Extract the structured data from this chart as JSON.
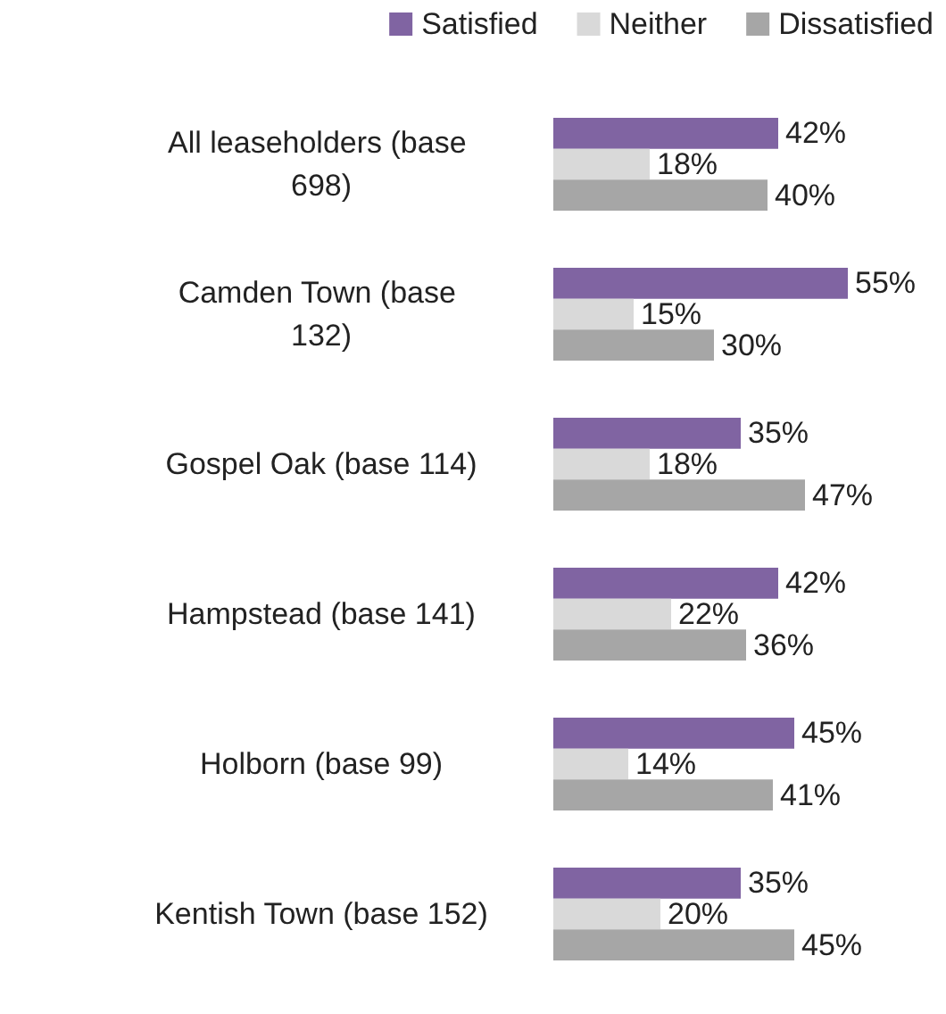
{
  "chart_data": {
    "type": "bar",
    "orientation": "horizontal",
    "categories": [
      "All leaseholders (base 698)",
      "Camden Town (base 132)",
      "Gospel Oak (base 114)",
      "Hampstead (base 141)",
      "Holborn (base 99)",
      "Kentish Town (base 152)"
    ],
    "series": [
      {
        "name": "Satisfied",
        "color": "#8064a2",
        "values": [
          42,
          55,
          35,
          42,
          45,
          35
        ],
        "value_labels": [
          "42%",
          "55%",
          "35%",
          "42%",
          "45%",
          "35%"
        ]
      },
      {
        "name": "Neither",
        "color": "#d9d9d9",
        "values": [
          18,
          15,
          18,
          22,
          14,
          20
        ],
        "value_labels": [
          "18%",
          "15%",
          "18%",
          "22%",
          "14%",
          "20%"
        ]
      },
      {
        "name": "Dissatisfied",
        "color": "#a6a6a6",
        "values": [
          40,
          30,
          47,
          36,
          41,
          45
        ],
        "value_labels": [
          "40%",
          "30%",
          "47%",
          "36%",
          "41%",
          "45%"
        ]
      }
    ],
    "tick_labels": "y",
    "legend": "top"
  }
}
